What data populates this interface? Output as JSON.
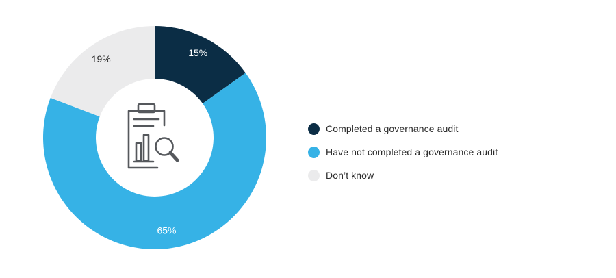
{
  "chart_data": {
    "type": "pie",
    "title": "",
    "categories": [
      "Completed a governance audit",
      "Have not completed a governance audit",
      "Don’t know"
    ],
    "values": [
      15,
      65,
      19
    ],
    "value_labels": [
      "15%",
      "65%",
      "19%"
    ],
    "colors": [
      "#0b2d45",
      "#36b2e6",
      "#ebebec"
    ],
    "label_colors": [
      "#ffffff",
      "#ffffff",
      "#2b2b2b"
    ],
    "donut": true,
    "center_icon": "clipboard-chart-magnifier-icon",
    "legend_position": "right"
  }
}
